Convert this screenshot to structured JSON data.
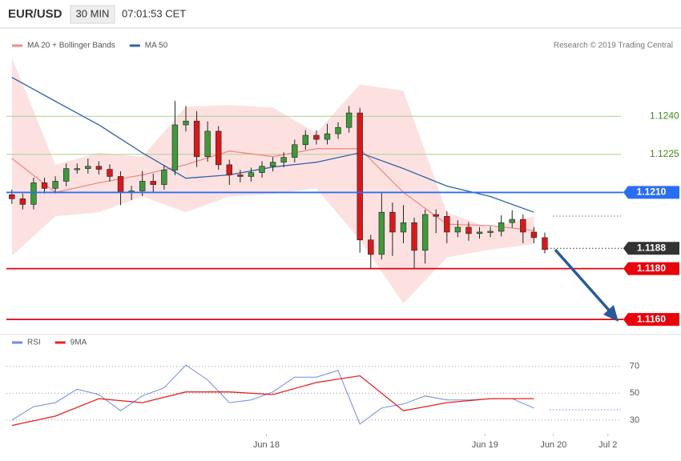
{
  "chart_data": [
    {
      "type": "candlestick",
      "symbol": "EUR/USD",
      "interval": "30 MIN",
      "time": "07:01:53 CET",
      "credit": "Research © 2019 Trading Central",
      "up_color": "#3f9a3a",
      "down_color": "#d8191b",
      "band_color": "#fde1e1",
      "xlim": [
        -0.5,
        56
      ],
      "ylim": [
        1.1155,
        1.127
      ],
      "yticks": [
        {
          "value": 1.124,
          "label": "1.1240"
        },
        1.1225
      ],
      "grid_color": "#a9d18e",
      "tick_color": "#3f8a1a",
      "x": [
        0,
        1,
        2,
        3,
        4,
        5,
        6,
        7,
        8,
        9,
        10,
        11,
        12,
        13,
        14,
        15,
        16,
        17,
        18,
        19,
        20,
        21,
        22,
        23,
        24,
        25,
        26,
        27,
        28,
        29,
        30,
        31,
        32,
        33,
        34,
        35,
        36,
        37,
        38,
        39,
        40,
        41,
        42,
        43,
        44,
        45,
        46,
        47,
        48,
        49
      ],
      "open": [
        1.12091,
        1.12075,
        1.12053,
        1.12138,
        1.12116,
        1.12144,
        1.12194,
        1.12194,
        1.12203,
        1.12191,
        1.12163,
        1.121,
        1.12106,
        1.12144,
        1.12131,
        1.12188,
        1.12366,
        1.12381,
        1.12241,
        1.12341,
        1.12209,
        1.12169,
        1.12163,
        1.12178,
        1.12203,
        1.12219,
        1.12238,
        1.12288,
        1.12325,
        1.12309,
        1.12331,
        1.12356,
        1.12413,
        1.11913,
        1.11856,
        1.12022,
        1.11944,
        1.11981,
        1.11872,
        1.12013,
        1.12006,
        1.11944,
        1.11963,
        1.11938,
        1.11944,
        1.11947,
        1.11981,
        1.11994,
        1.11944,
        1.11922
      ],
      "high": [
        1.12111,
        1.12095,
        1.12158,
        1.12158,
        1.12164,
        1.12214,
        1.12214,
        1.12233,
        1.12223,
        1.12211,
        1.12183,
        1.12126,
        1.12184,
        1.12174,
        1.12208,
        1.1246,
        1.1244,
        1.1242,
        1.1238,
        1.12361,
        1.12229,
        1.12189,
        1.12198,
        1.12223,
        1.12239,
        1.12258,
        1.12308,
        1.12345,
        1.12345,
        1.1237,
        1.12376,
        1.1244,
        1.12433,
        1.11933,
        1.121,
        1.1206,
        1.1205,
        1.12001,
        1.12033,
        1.12033,
        1.12026,
        1.1199,
        1.11983,
        1.11964,
        1.11967,
        1.1201,
        1.1203,
        1.12014,
        1.11964,
        1.11942
      ],
      "low": [
        1.12055,
        1.12033,
        1.12033,
        1.12096,
        1.12096,
        1.12124,
        1.12174,
        1.12174,
        1.12171,
        1.12143,
        1.1205,
        1.1207,
        1.12086,
        1.121,
        1.12111,
        1.12168,
        1.1234,
        1.122,
        1.12221,
        1.12189,
        1.1213,
        1.1214,
        1.12143,
        1.12158,
        1.12183,
        1.12199,
        1.12218,
        1.12268,
        1.12289,
        1.12289,
        1.12311,
        1.12336,
        1.11863,
        1.118,
        1.11836,
        1.1185,
        1.119,
        1.118,
        1.1182,
        1.1194,
        1.119,
        1.11924,
        1.1191,
        1.11918,
        1.11924,
        1.11927,
        1.11961,
        1.119,
        1.119,
        1.1186
      ],
      "close": [
        1.12075,
        1.12053,
        1.12138,
        1.12116,
        1.12144,
        1.12194,
        1.12194,
        1.12203,
        1.12191,
        1.12163,
        1.121,
        1.12106,
        1.12144,
        1.12131,
        1.12188,
        1.12366,
        1.12381,
        1.12241,
        1.12341,
        1.12209,
        1.12169,
        1.12163,
        1.12178,
        1.12203,
        1.12219,
        1.12238,
        1.12288,
        1.12325,
        1.12309,
        1.12331,
        1.12356,
        1.12413,
        1.11913,
        1.11856,
        1.12022,
        1.11944,
        1.11981,
        1.11872,
        1.12013,
        1.12006,
        1.11944,
        1.11963,
        1.11938,
        1.11944,
        1.11947,
        1.11981,
        1.11994,
        1.11944,
        1.11922,
        1.11875
      ],
      "series": [
        {
          "name": "MA 20 + Bollinger Bands",
          "color": "#f08a84",
          "x": [
            0,
            4,
            8,
            12,
            16,
            20,
            24,
            28,
            32,
            36,
            40,
            44,
            48
          ],
          "values": [
            1.12234,
            1.121,
            1.12138,
            1.12169,
            1.12209,
            1.12263,
            1.12241,
            1.12272,
            1.12272,
            1.121,
            1.11975,
            1.11969,
            1.1195
          ],
          "upper": [
            1.12631,
            1.12209,
            1.12256,
            1.12241,
            1.12438,
            1.12444,
            1.12434,
            1.12334,
            1.12525,
            1.125,
            1.12022,
            1.11959,
            1.12006
          ],
          "lower": [
            1.1185,
            1.12006,
            1.12022,
            1.12084,
            1.12022,
            1.12084,
            1.12094,
            1.12116,
            1.11913,
            1.11663,
            1.11844,
            1.11875,
            1.11897
          ]
        },
        {
          "name": "MA 50",
          "color": "#2f63a8",
          "x": [
            0,
            4,
            8,
            12,
            16,
            20,
            24,
            28,
            32,
            36,
            40,
            44,
            48
          ],
          "values": [
            1.12553,
            1.12459,
            1.12366,
            1.12256,
            1.12156,
            1.12169,
            1.122,
            1.12219,
            1.12256,
            1.12194,
            1.12125,
            1.12084,
            1.12022
          ]
        }
      ],
      "levels": [
        {
          "value": 1.121,
          "label": "1.1210",
          "color": "#2a6ef5",
          "style": "solid"
        },
        {
          "value": 1.1188,
          "label": "1.1188",
          "color": "#333333",
          "style": "dotted"
        },
        {
          "value": 1.118,
          "label": "1.1180",
          "color": "#e8000b",
          "style": "solid"
        },
        {
          "value": 1.116,
          "label": "1.1160",
          "color": "#e8000b",
          "style": "solid"
        }
      ]
    },
    {
      "type": "line",
      "xlim": [
        -0.5,
        56
      ],
      "ylim": [
        21,
        80
      ],
      "yticks": [
        30,
        50,
        70
      ],
      "xticks": [
        {
          "value": 23.4,
          "label": "Jun 18"
        },
        {
          "value": 43.5,
          "label": "Jun 19"
        },
        {
          "value": 49.8,
          "label": "Jun 20"
        },
        {
          "value": 54.8,
          "label": "Jul 2"
        }
      ],
      "series": [
        {
          "name": "RSI",
          "color": "#6b8de3",
          "x": [
            0,
            2,
            4,
            6,
            8,
            10,
            12,
            14,
            16,
            18,
            20,
            22,
            24,
            26,
            28,
            30,
            32,
            34,
            36,
            38,
            40,
            42,
            44,
            46,
            48
          ],
          "values": [
            30,
            40,
            43,
            53,
            49,
            37,
            48,
            54,
            71,
            60,
            43,
            45,
            51,
            62,
            62,
            67,
            27,
            39,
            42,
            48,
            45,
            45,
            46,
            46,
            39
          ]
        },
        {
          "name": "9MA",
          "color": "#e8211d",
          "x": [
            0,
            4,
            8,
            12,
            16,
            20,
            24,
            28,
            32,
            36,
            40,
            44,
            48
          ],
          "values": [
            26,
            33,
            46,
            43,
            51,
            51,
            49,
            58,
            63,
            37,
            43,
            46,
            46
          ]
        }
      ]
    }
  ]
}
